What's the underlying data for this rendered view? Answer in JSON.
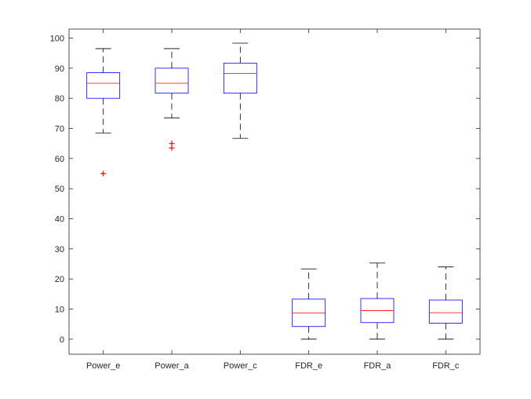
{
  "chart_data": {
    "type": "boxplot",
    "title": "",
    "xlabel": "",
    "ylabel": "",
    "ylim": [
      -5,
      103
    ],
    "yticks": [
      0,
      10,
      20,
      30,
      40,
      50,
      60,
      70,
      80,
      90,
      100
    ],
    "grid": false,
    "categories": [
      "Power_e",
      "Power_a",
      "Power_c",
      "FDR_e",
      "FDR_a",
      "FDR_c"
    ],
    "boxes": [
      {
        "label": "Power_e",
        "whisker_low": 68.5,
        "q1": 80,
        "median": 85,
        "q3": 88.5,
        "whisker_high": 96.5,
        "outliers": [
          55
        ]
      },
      {
        "label": "Power_a",
        "whisker_low": 73.5,
        "q1": 81.7,
        "median": 85,
        "q3": 90,
        "whisker_high": 96.5,
        "outliers": [
          63.5,
          65
        ]
      },
      {
        "label": "Power_c",
        "whisker_low": 66.7,
        "q1": 81.7,
        "median": 88.3,
        "q3": 91.7,
        "whisker_high": 98.3,
        "outliers": []
      },
      {
        "label": "FDR_e",
        "whisker_low": 0,
        "q1": 4.2,
        "median": 8.7,
        "q3": 13.3,
        "whisker_high": 23.3,
        "outliers": []
      },
      {
        "label": "FDR_a",
        "whisker_low": 0,
        "q1": 5.5,
        "median": 9.5,
        "q3": 13.5,
        "whisker_high": 25.3,
        "outliers": []
      },
      {
        "label": "FDR_c",
        "whisker_low": 0,
        "q1": 5.3,
        "median": 8.8,
        "q3": 13,
        "whisker_high": 24,
        "outliers": []
      }
    ],
    "colors": {
      "box": "#0000ff",
      "median": "#ff0000",
      "whisker": "#000000",
      "outlier": "#ff0000",
      "axis": "#262626"
    }
  }
}
